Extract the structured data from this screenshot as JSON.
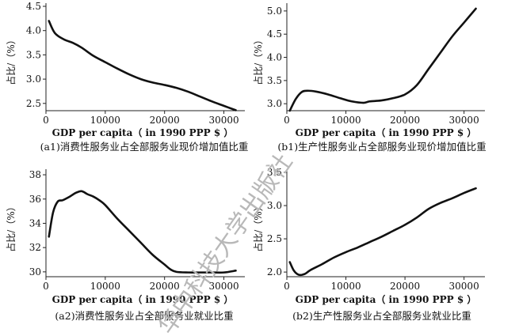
{
  "chart_data": [
    {
      "id": "a1",
      "type": "line",
      "caption": "(a1)消费性服务业占全部服务业现价增加值比重",
      "xlabel": "GDP per capita（ in 1990 PPP $ ）",
      "ylabel": "占比/（%）",
      "xlim": [
        0,
        33000
      ],
      "ylim": [
        2.35,
        4.5
      ],
      "xticks": [
        0,
        10000,
        20000,
        30000
      ],
      "yticks": [
        2.5,
        3.0,
        3.5,
        4.0,
        4.5
      ],
      "xtick_labels": [
        "0",
        "10000",
        "20000",
        "30000"
      ],
      "ytick_labels": [
        "2.5",
        "3.0",
        "3.5",
        "4.0",
        "4.5"
      ],
      "series": [
        {
          "x": [
            500,
            1500,
            3000,
            4500,
            6000,
            8000,
            10000,
            12000,
            14000,
            16000,
            18000,
            20000,
            22000,
            24000,
            26000,
            28000,
            30000,
            32000
          ],
          "y": [
            4.2,
            3.95,
            3.82,
            3.75,
            3.65,
            3.48,
            3.35,
            3.22,
            3.1,
            3.0,
            2.93,
            2.88,
            2.82,
            2.74,
            2.64,
            2.54,
            2.45,
            2.36
          ]
        }
      ]
    },
    {
      "id": "b1",
      "type": "line",
      "caption": "(b1)生产性服务业占全部服务业现价增加值比重",
      "xlabel": "GDP per capita（ in 1990 PPP $ ）",
      "ylabel": "占比/（%）",
      "xlim": [
        0,
        33000
      ],
      "ylim": [
        2.85,
        5.1
      ],
      "xticks": [
        0,
        10000,
        20000,
        30000
      ],
      "yticks": [
        3.0,
        3.5,
        4.0,
        4.5,
        5.0
      ],
      "xtick_labels": [
        "0",
        "10000",
        "20000",
        "30000"
      ],
      "ytick_labels": [
        "3.0",
        "3.5",
        "4.0",
        "4.5",
        "5.0"
      ],
      "series": [
        {
          "x": [
            500,
            1500,
            2500,
            3500,
            5000,
            7000,
            9000,
            11000,
            13000,
            14000,
            16000,
            18000,
            20000,
            22000,
            24000,
            26000,
            28000,
            30000,
            32000
          ],
          "y": [
            2.85,
            3.1,
            3.25,
            3.28,
            3.26,
            3.2,
            3.12,
            3.05,
            3.02,
            3.05,
            3.07,
            3.12,
            3.2,
            3.4,
            3.75,
            4.1,
            4.45,
            4.75,
            5.05
          ]
        }
      ]
    },
    {
      "id": "a2",
      "type": "line",
      "caption": "(a2)消费性服务业占全部服务业就业比重",
      "xlabel": "GDP per capita（ in 1990 PPP $ ）",
      "ylabel": "占比/（%）",
      "xlim": [
        0,
        33000
      ],
      "ylim": [
        29.6,
        38.2
      ],
      "xticks": [
        0,
        10000,
        20000,
        30000
      ],
      "yticks": [
        30,
        32,
        34,
        36,
        38
      ],
      "xtick_labels": [
        "0",
        "10000",
        "20000",
        "30000"
      ],
      "ytick_labels": [
        "30",
        "32",
        "34",
        "36",
        "38"
      ],
      "series": [
        {
          "x": [
            500,
            1200,
            2000,
            2800,
            4000,
            5000,
            6000,
            7000,
            8000,
            9000,
            10000,
            12000,
            14000,
            16000,
            18000,
            20000,
            21000,
            22000,
            24000,
            26000,
            28000,
            30000,
            32000
          ],
          "y": [
            32.9,
            34.9,
            35.8,
            35.9,
            36.2,
            36.5,
            36.65,
            36.4,
            36.2,
            35.9,
            35.5,
            34.4,
            33.4,
            32.4,
            31.4,
            30.6,
            30.2,
            30.0,
            29.95,
            29.95,
            29.95,
            29.95,
            30.1
          ]
        }
      ]
    },
    {
      "id": "b2",
      "type": "line",
      "caption": "(b2)生产性服务业占全部服务业就业比重",
      "xlabel": "GDP per capita（ in 1990 PPP $ ）",
      "ylabel": "占比/（%）",
      "xlim": [
        0,
        33000
      ],
      "ylim": [
        1.93,
        3.5
      ],
      "xticks": [
        0,
        10000,
        20000,
        30000
      ],
      "yticks": [
        2.0,
        2.5,
        3.0,
        3.5
      ],
      "xtick_labels": [
        "0",
        "10000",
        "20000",
        "30000"
      ],
      "ytick_labels": [
        "2.0",
        "2.5",
        "3.0",
        "3.5"
      ],
      "series": [
        {
          "x": [
            500,
            1200,
            2000,
            3000,
            4000,
            6000,
            8000,
            10000,
            12000,
            14000,
            16000,
            18000,
            20000,
            22000,
            24000,
            26000,
            28000,
            30000,
            32000
          ],
          "y": [
            2.15,
            2.02,
            1.96,
            1.97,
            2.03,
            2.12,
            2.22,
            2.3,
            2.37,
            2.45,
            2.53,
            2.62,
            2.71,
            2.82,
            2.95,
            3.04,
            3.11,
            3.19,
            3.26
          ]
        }
      ]
    }
  ],
  "watermark": "华中科技大学出版社"
}
